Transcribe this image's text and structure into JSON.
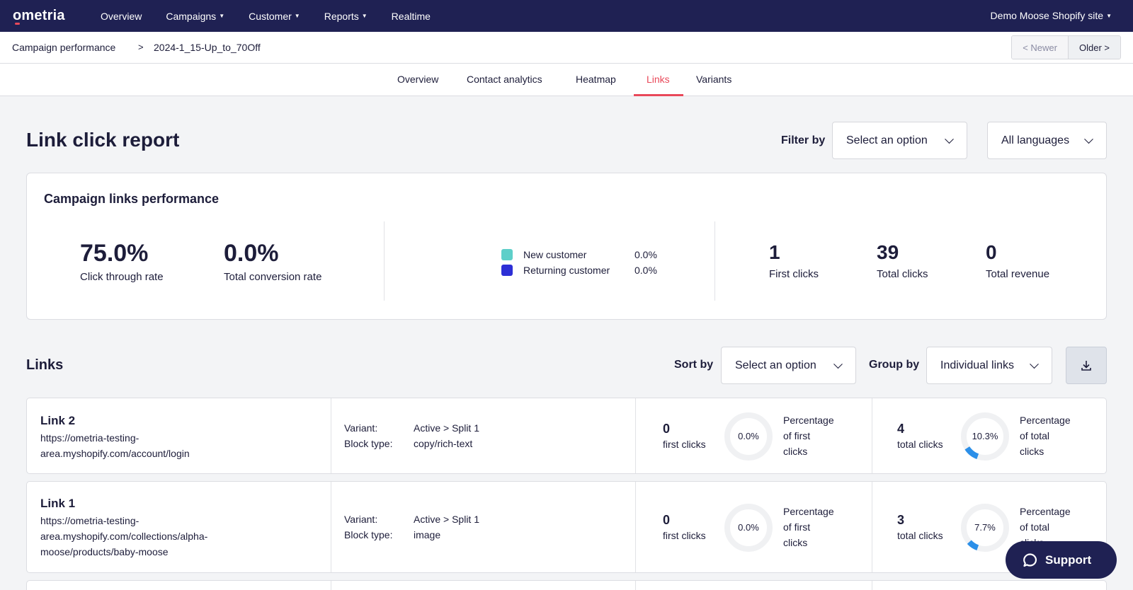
{
  "nav": {
    "logo": "ometria",
    "items": [
      {
        "label": "Overview",
        "dropdown": false
      },
      {
        "label": "Campaigns",
        "dropdown": true
      },
      {
        "label": "Customer",
        "dropdown": true
      },
      {
        "label": "Reports",
        "dropdown": true
      },
      {
        "label": "Realtime",
        "dropdown": false
      }
    ],
    "site": "Demo Moose Shopify site"
  },
  "breadcrumb": {
    "parent": "Campaign performance",
    "separator": ">",
    "current": "2024-1_15-Up_to_70Off"
  },
  "pager": {
    "newer": "< Newer",
    "older": "Older >"
  },
  "tabs": [
    {
      "label": "Overview"
    },
    {
      "label": "Contact analytics"
    },
    {
      "label": "Heatmap"
    },
    {
      "label": "Links",
      "active": true
    },
    {
      "label": "Variants"
    }
  ],
  "report": {
    "title": "Link click report",
    "filter_label": "Filter by",
    "filter_value": "Select an option",
    "language_value": "All languages"
  },
  "summary": {
    "title": "Campaign links performance",
    "ctr_value": "75.0%",
    "ctr_label": "Click through rate",
    "conv_value": "0.0%",
    "conv_label": "Total conversion rate",
    "legend": [
      {
        "label": "New customer",
        "value": "0.0%",
        "color": "#5ecfc9"
      },
      {
        "label": "Returning customer",
        "value": "0.0%",
        "color": "#2d2fd6"
      }
    ],
    "first_clicks_value": "1",
    "first_clicks_label": "First clicks",
    "total_clicks_value": "39",
    "total_clicks_label": "Total clicks",
    "total_revenue_value": "0",
    "total_revenue_label": "Total revenue"
  },
  "links_section": {
    "title": "Links",
    "sort_label": "Sort by",
    "sort_value": "Select an option",
    "group_label": "Group by",
    "group_value": "Individual links",
    "download_icon": "download-icon"
  },
  "links": [
    {
      "name": "Link 2",
      "url_lines": [
        "https://ometria-testing-",
        "area.myshopify.com/account/login"
      ],
      "variant_key": "Variant:",
      "variant_value": "Active > Split 1",
      "block_key": "Block type:",
      "block_value": "copy/rich-text",
      "first_clicks": "0",
      "first_clicks_label": "first clicks",
      "first_pct": 0.0,
      "first_pct_label": "0.0%",
      "first_pct_text": [
        "Percentage",
        "of first",
        "clicks"
      ],
      "total_clicks": "4",
      "total_clicks_label": "total clicks",
      "total_pct": 10.3,
      "total_pct_label": "10.3%",
      "total_pct_text": [
        "Percentage",
        "of total",
        "clicks"
      ]
    },
    {
      "name": "Link 1",
      "url_lines": [
        "https://ometria-testing-",
        "area.myshopify.com/collections/alpha-",
        "moose/products/baby-moose"
      ],
      "variant_key": "Variant:",
      "variant_value": "Active > Split 1",
      "block_key": "Block type:",
      "block_value": "image",
      "first_clicks": "0",
      "first_clicks_label": "first clicks",
      "first_pct": 0.0,
      "first_pct_label": "0.0%",
      "first_pct_text": [
        "Percentage",
        "of first",
        "clicks"
      ],
      "total_clicks": "3",
      "total_clicks_label": "total clicks",
      "total_pct": 7.7,
      "total_pct_label": "7.7%",
      "total_pct_text": [
        "Percentage",
        "of total",
        "clicks"
      ]
    }
  ],
  "support": {
    "label": "Support"
  },
  "colors": {
    "nav_bg": "#1f2153",
    "accent": "#e9495a",
    "donut_fill": "#2b8fe8",
    "donut_track": "#f0f1f3"
  }
}
